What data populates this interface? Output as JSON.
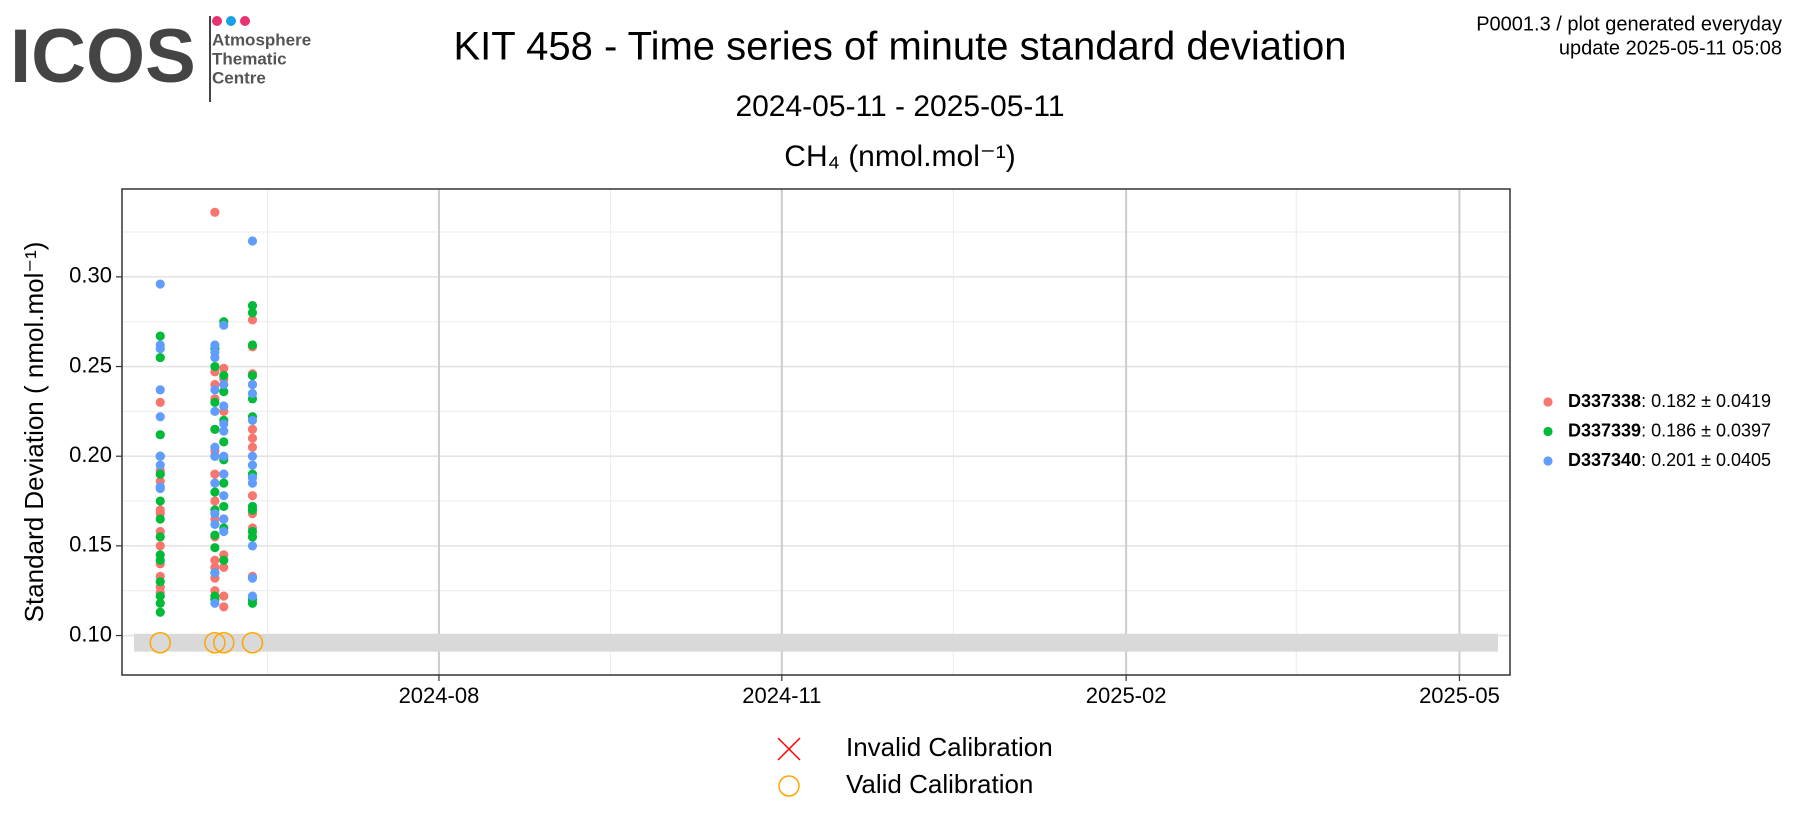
{
  "logo": {
    "name": "ICOS",
    "lines": [
      "Atmosphere",
      "Thematic",
      "Centre"
    ]
  },
  "info": [
    "P0001.3 / plot generated everyday",
    "update  2025-05-11 05:08"
  ],
  "chart_data": {
    "type": "scatter",
    "title": "KIT 458 - Time series of minute standard deviation",
    "subtitle": "2024-05-11 - 2025-05-11",
    "plot_title": "CH₄ (nmol.mol⁻¹)",
    "y_label": "Standard Deviation ( nmol.mol⁻¹)",
    "xlim": [
      2024.35,
      2025.366
    ],
    "ylim": [
      0.078,
      0.349
    ],
    "xticks": [
      {
        "value": 2024.582,
        "label": "2024-08"
      },
      {
        "value": 2024.833,
        "label": "2024-11"
      },
      {
        "value": 2025.085,
        "label": "2025-02"
      },
      {
        "value": 2025.329,
        "label": "2025-05"
      }
    ],
    "yticks": [
      {
        "value": 0.1,
        "label": "0.10"
      },
      0.15,
      {
        "value": 0.2,
        "label": "0.20"
      },
      0.25,
      {
        "value": 0.3,
        "label": "0.30"
      }
    ],
    "grid": true,
    "legend": "right",
    "series": [
      {
        "name": "D337338",
        "stats": ": 0.182 ± 0.0419",
        "color": "#F8766D",
        "x": [
          2024.378,
          2024.378,
          2024.378,
          2024.378,
          2024.378,
          2024.378,
          2024.378,
          2024.378,
          2024.378,
          2024.378,
          2024.378,
          2024.378,
          2024.418,
          2024.418,
          2024.418,
          2024.418,
          2024.418,
          2024.418,
          2024.418,
          2024.418,
          2024.418,
          2024.418,
          2024.418,
          2024.418,
          2024.418,
          2024.418,
          2024.418,
          2024.4245,
          2024.4245,
          2024.4245,
          2024.4245,
          2024.4245,
          2024.4245,
          2024.4245,
          2024.4245,
          2024.4245,
          2024.4455,
          2024.4455,
          2024.4455,
          2024.4455,
          2024.4455,
          2024.4455,
          2024.4455,
          2024.4455,
          2024.4455,
          2024.4455,
          2024.4455,
          2024.4455
        ],
        "values": [
          0.192,
          0.186,
          0.17,
          0.168,
          0.158,
          0.15,
          0.14,
          0.133,
          0.127,
          0.124,
          0.2,
          0.23,
          0.336,
          0.247,
          0.24,
          0.232,
          0.215,
          0.203,
          0.19,
          0.185,
          0.175,
          0.165,
          0.155,
          0.142,
          0.138,
          0.132,
          0.125,
          0.249,
          0.243,
          0.225,
          0.19,
          0.165,
          0.145,
          0.138,
          0.122,
          0.116,
          0.276,
          0.261,
          0.246,
          0.24,
          0.215,
          0.21,
          0.205,
          0.178,
          0.168,
          0.16,
          0.155,
          0.133
        ]
      },
      {
        "name": "D337339",
        "stats": ": 0.186 ± 0.0397",
        "color": "#00BA38",
        "x": [
          2024.378,
          2024.378,
          2024.378,
          2024.378,
          2024.378,
          2024.378,
          2024.378,
          2024.378,
          2024.378,
          2024.378,
          2024.378,
          2024.378,
          2024.378,
          2024.378,
          2024.418,
          2024.418,
          2024.418,
          2024.418,
          2024.418,
          2024.418,
          2024.418,
          2024.418,
          2024.418,
          2024.418,
          2024.418,
          2024.418,
          2024.4245,
          2024.4245,
          2024.4245,
          2024.4245,
          2024.4245,
          2024.4245,
          2024.4245,
          2024.4245,
          2024.4245,
          2024.4245,
          2024.4455,
          2024.4455,
          2024.4455,
          2024.4455,
          2024.4455,
          2024.4455,
          2024.4455,
          2024.4455,
          2024.4455,
          2024.4455,
          2024.4455,
          2024.4455,
          2024.4455
        ],
        "values": [
          0.267,
          0.255,
          0.212,
          0.2,
          0.19,
          0.175,
          0.165,
          0.155,
          0.145,
          0.142,
          0.13,
          0.122,
          0.118,
          0.113,
          0.26,
          0.25,
          0.23,
          0.215,
          0.2,
          0.18,
          0.17,
          0.156,
          0.149,
          0.135,
          0.122,
          0.12,
          0.275,
          0.245,
          0.236,
          0.22,
          0.208,
          0.198,
          0.185,
          0.172,
          0.16,
          0.142,
          0.284,
          0.28,
          0.262,
          0.245,
          0.232,
          0.222,
          0.19,
          0.172,
          0.17,
          0.158,
          0.155,
          0.12,
          0.118
        ]
      },
      {
        "name": "D337340",
        "stats": ": 0.201 ± 0.0405",
        "color": "#619CFF",
        "x": [
          2024.378,
          2024.378,
          2024.378,
          2024.378,
          2024.378,
          2024.378,
          2024.378,
          2024.378,
          2024.378,
          2024.418,
          2024.418,
          2024.418,
          2024.418,
          2024.418,
          2024.418,
          2024.418,
          2024.418,
          2024.418,
          2024.418,
          2024.418,
          2024.418,
          2024.4245,
          2024.4245,
          2024.4245,
          2024.4245,
          2024.4245,
          2024.4245,
          2024.4245,
          2024.4245,
          2024.4245,
          2024.4245,
          2024.4455,
          2024.4455,
          2024.4455,
          2024.4455,
          2024.4455,
          2024.4455,
          2024.4455,
          2024.4455,
          2024.4455,
          2024.4455,
          2024.4455
        ],
        "values": [
          0.296,
          0.262,
          0.26,
          0.237,
          0.222,
          0.2,
          0.195,
          0.183,
          0.182,
          0.262,
          0.258,
          0.255,
          0.237,
          0.225,
          0.205,
          0.2,
          0.185,
          0.168,
          0.162,
          0.135,
          0.118,
          0.273,
          0.24,
          0.228,
          0.218,
          0.214,
          0.2,
          0.19,
          0.178,
          0.165,
          0.158,
          0.32,
          0.24,
          0.235,
          0.22,
          0.2,
          0.195,
          0.188,
          0.185,
          0.15,
          0.132,
          0.122
        ]
      }
    ],
    "band": {
      "ylim": [
        0.091,
        0.101
      ],
      "color": "#d9d9d9"
    },
    "calibration": [
      {
        "name": "Invalid Calibration",
        "color": "#FF0000",
        "marker": "x",
        "x": [],
        "values": []
      },
      {
        "name": "Valid Calibration",
        "color": "#FFA500",
        "marker": "circle",
        "x": [
          2024.378,
          2024.418,
          2024.4245,
          2024.4455
        ],
        "values": [
          0.096,
          0.096,
          0.096,
          0.096
        ]
      }
    ]
  }
}
